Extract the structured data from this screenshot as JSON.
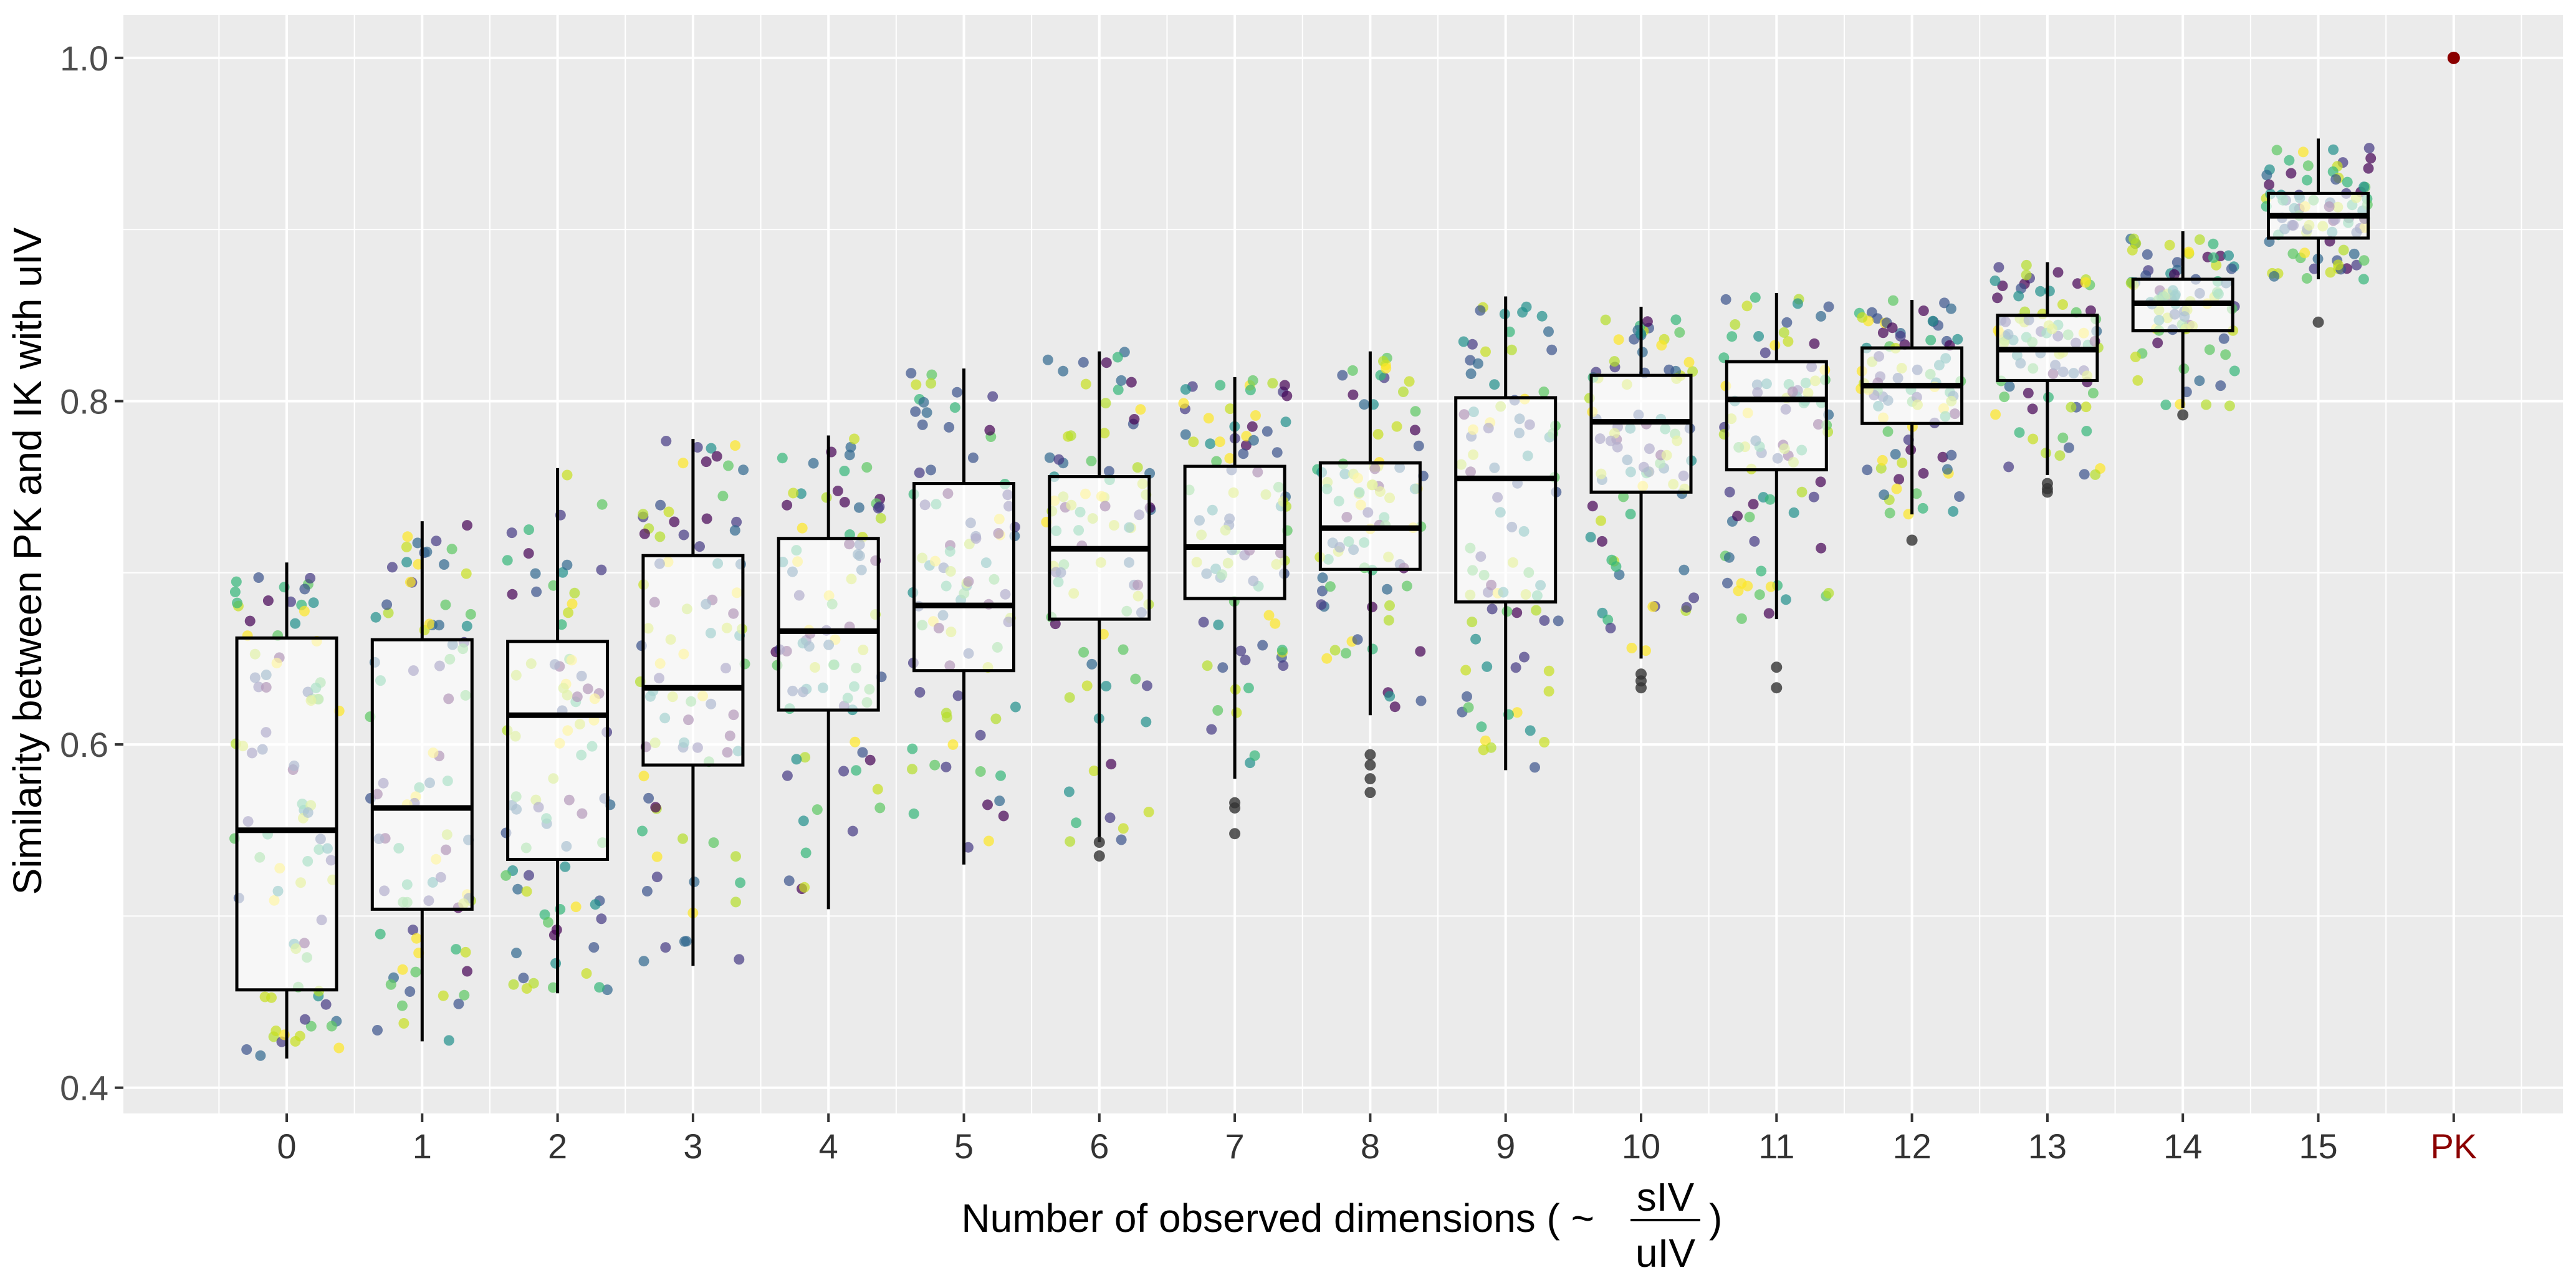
{
  "chart_data": {
    "type": "box",
    "title": "",
    "xlabel": "Number of observed dimensions ( ~",
    "xlabel_fraction": {
      "numerator": "sIV",
      "denominator": "uIV",
      "suffix": ")"
    },
    "ylabel": "Similarity between PK and IK with uIV",
    "ylim": [
      0.385,
      1.025
    ],
    "yticks": [
      0.4,
      0.6,
      0.8,
      1.0
    ],
    "ytick_labels": [
      "0.4",
      "0.6",
      "0.8",
      "1.0"
    ],
    "categories": [
      "0",
      "1",
      "2",
      "3",
      "4",
      "5",
      "6",
      "7",
      "8",
      "9",
      "10",
      "11",
      "12",
      "13",
      "14",
      "15",
      "PK"
    ],
    "category_colors": {
      "default": "#333333",
      "PK": "#8b0000"
    },
    "grid": true,
    "background": "#ebebeb",
    "boxes": [
      {
        "category": "0",
        "q1": 0.457,
        "median": 0.55,
        "q3": 0.662,
        "whisker_low": 0.417,
        "whisker_high": 0.706,
        "outliers": []
      },
      {
        "category": "1",
        "q1": 0.504,
        "median": 0.563,
        "q3": 0.661,
        "whisker_low": 0.427,
        "whisker_high": 0.73,
        "outliers": []
      },
      {
        "category": "2",
        "q1": 0.533,
        "median": 0.617,
        "q3": 0.66,
        "whisker_low": 0.455,
        "whisker_high": 0.761,
        "outliers": []
      },
      {
        "category": "3",
        "q1": 0.588,
        "median": 0.633,
        "q3": 0.71,
        "whisker_low": 0.471,
        "whisker_high": 0.778,
        "outliers": []
      },
      {
        "category": "4",
        "q1": 0.62,
        "median": 0.666,
        "q3": 0.72,
        "whisker_low": 0.504,
        "whisker_high": 0.78,
        "outliers": []
      },
      {
        "category": "5",
        "q1": 0.643,
        "median": 0.681,
        "q3": 0.752,
        "whisker_low": 0.53,
        "whisker_high": 0.819,
        "outliers": []
      },
      {
        "category": "6",
        "q1": 0.673,
        "median": 0.714,
        "q3": 0.756,
        "whisker_low": 0.543,
        "whisker_high": 0.829,
        "outliers": [
          0.535,
          0.543
        ]
      },
      {
        "category": "7",
        "q1": 0.685,
        "median": 0.715,
        "q3": 0.762,
        "whisker_low": 0.58,
        "whisker_high": 0.814,
        "outliers": [
          0.548,
          0.563,
          0.566
        ]
      },
      {
        "category": "8",
        "q1": 0.702,
        "median": 0.726,
        "q3": 0.764,
        "whisker_low": 0.617,
        "whisker_high": 0.829,
        "outliers": [
          0.572,
          0.58,
          0.588,
          0.594
        ]
      },
      {
        "category": "9",
        "q1": 0.683,
        "median": 0.755,
        "q3": 0.802,
        "whisker_low": 0.585,
        "whisker_high": 0.861,
        "outliers": []
      },
      {
        "category": "10",
        "q1": 0.747,
        "median": 0.788,
        "q3": 0.815,
        "whisker_low": 0.65,
        "whisker_high": 0.855,
        "outliers": [
          0.633,
          0.637,
          0.641
        ]
      },
      {
        "category": "11",
        "q1": 0.76,
        "median": 0.801,
        "q3": 0.823,
        "whisker_low": 0.673,
        "whisker_high": 0.863,
        "outliers": [
          0.633,
          0.645
        ]
      },
      {
        "category": "12",
        "q1": 0.787,
        "median": 0.809,
        "q3": 0.831,
        "whisker_low": 0.734,
        "whisker_high": 0.859,
        "outliers": [
          0.719
        ]
      },
      {
        "category": "13",
        "q1": 0.812,
        "median": 0.83,
        "q3": 0.85,
        "whisker_low": 0.757,
        "whisker_high": 0.881,
        "outliers": [
          0.747,
          0.749,
          0.752
        ]
      },
      {
        "category": "14",
        "q1": 0.841,
        "median": 0.857,
        "q3": 0.871,
        "whisker_low": 0.796,
        "whisker_high": 0.899,
        "outliers": [
          0.792
        ]
      },
      {
        "category": "15",
        "q1": 0.895,
        "median": 0.908,
        "q3": 0.921,
        "whisker_low": 0.871,
        "whisker_high": 0.953,
        "outliers": [
          0.846
        ]
      }
    ],
    "points": [
      {
        "category": "PK",
        "value": 1.0,
        "color": "#8b0000"
      }
    ],
    "jitter": {
      "points_per_category": 85,
      "palette": [
        "#440154",
        "#3b528b",
        "#21908c",
        "#5dc863",
        "#fde725",
        "#b5de2b",
        "#35b779",
        "#31688e",
        "#443983",
        "#c8e020"
      ]
    }
  }
}
